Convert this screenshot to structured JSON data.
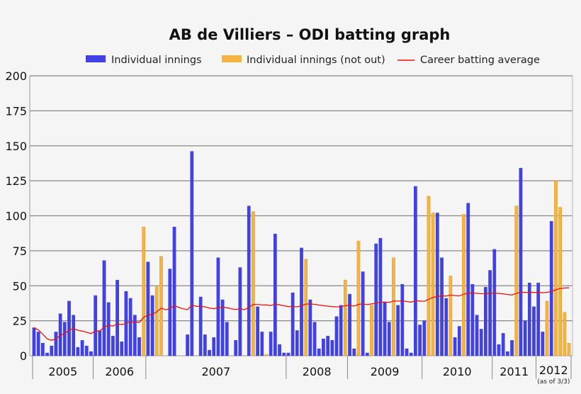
{
  "chart_data": {
    "type": "bar",
    "title": "AB de Villiers – ODI batting graph",
    "legend": {
      "placement": "top",
      "entries": [
        "Individual innings",
        "Individual innings (not out)",
        "Career batting average"
      ]
    },
    "colors": {
      "out": "#4141e8",
      "not_out": "#f5b342",
      "average": "#ee1111",
      "grid": "#888888"
    },
    "ylim": [
      0,
      200
    ],
    "yticks": [
      0,
      25,
      50,
      75,
      100,
      125,
      150,
      175,
      200
    ],
    "grid": true,
    "years": [
      {
        "label": "2005",
        "innings": 14
      },
      {
        "label": "2006",
        "innings": 12
      },
      {
        "label": "2007",
        "innings": 32
      },
      {
        "label": "2008",
        "innings": 14
      },
      {
        "label": "2009",
        "innings": 17
      },
      {
        "label": "2010",
        "innings": 16
      },
      {
        "label": "2011",
        "innings": 10
      },
      {
        "label": "2012",
        "innings": 8,
        "note": "(as of 3/3)"
      }
    ],
    "innings": [
      [
        20,
        0
      ],
      [
        17,
        0
      ],
      [
        9,
        0
      ],
      [
        2,
        0
      ],
      [
        7,
        0
      ],
      [
        17,
        0
      ],
      [
        30,
        0
      ],
      [
        24,
        0
      ],
      [
        39,
        0
      ],
      [
        29,
        0
      ],
      [
        6,
        0
      ],
      [
        11,
        0
      ],
      [
        7,
        0
      ],
      [
        3,
        0
      ],
      [
        43,
        0
      ],
      [
        18,
        0
      ],
      [
        68,
        0
      ],
      [
        38,
        0
      ],
      [
        14,
        0
      ],
      [
        54,
        0
      ],
      [
        10,
        0
      ],
      [
        46,
        0
      ],
      [
        41,
        0
      ],
      [
        29,
        0
      ],
      [
        13,
        0
      ],
      [
        92,
        1
      ],
      [
        67,
        0
      ],
      [
        43,
        0
      ],
      [
        50,
        1
      ],
      [
        71,
        1
      ],
      [
        0,
        0
      ],
      [
        62,
        0
      ],
      [
        92,
        0
      ],
      [
        0,
        0
      ],
      [
        0,
        0
      ],
      [
        15,
        0
      ],
      [
        146,
        0
      ],
      [
        0,
        0
      ],
      [
        42,
        0
      ],
      [
        15,
        0
      ],
      [
        4,
        0
      ],
      [
        13,
        0
      ],
      [
        70,
        0
      ],
      [
        40,
        0
      ],
      [
        24,
        0
      ],
      [
        0,
        0
      ],
      [
        11,
        0
      ],
      [
        63,
        0
      ],
      [
        0,
        0
      ],
      [
        107,
        0
      ],
      [
        103,
        1
      ],
      [
        35,
        0
      ],
      [
        17,
        0
      ],
      [
        1,
        1
      ],
      [
        17,
        0
      ],
      [
        87,
        0
      ],
      [
        8,
        0
      ],
      [
        2,
        0
      ],
      [
        2,
        0
      ],
      [
        45,
        0
      ],
      [
        18,
        0
      ],
      [
        77,
        0
      ],
      [
        69,
        1
      ],
      [
        40,
        0
      ],
      [
        24,
        0
      ],
      [
        5,
        0
      ],
      [
        12,
        0
      ],
      [
        14,
        0
      ],
      [
        11,
        0
      ],
      [
        28,
        0
      ],
      [
        36,
        0
      ],
      [
        54,
        1
      ],
      [
        44,
        0
      ],
      [
        5,
        0
      ],
      [
        82,
        1
      ],
      [
        60,
        0
      ],
      [
        2,
        0
      ],
      [
        36,
        1
      ],
      [
        80,
        0
      ],
      [
        84,
        0
      ],
      [
        38,
        0
      ],
      [
        24,
        0
      ],
      [
        70,
        1
      ],
      [
        36,
        0
      ],
      [
        51,
        0
      ],
      [
        5,
        0
      ],
      [
        2,
        0
      ],
      [
        121,
        0
      ],
      [
        22,
        0
      ],
      [
        25,
        0
      ],
      [
        114,
        1
      ],
      [
        102,
        1
      ],
      [
        102,
        0
      ],
      [
        70,
        0
      ],
      [
        41,
        0
      ],
      [
        57,
        1
      ],
      [
        13,
        0
      ],
      [
        21,
        0
      ],
      [
        101,
        1
      ],
      [
        109,
        0
      ],
      [
        51,
        0
      ],
      [
        29,
        0
      ],
      [
        19,
        0
      ],
      [
        49,
        0
      ],
      [
        61,
        0
      ],
      [
        76,
        0
      ],
      [
        8,
        0
      ],
      [
        16,
        0
      ],
      [
        3,
        0
      ],
      [
        11,
        0
      ],
      [
        107,
        1
      ],
      [
        134,
        0
      ],
      [
        25,
        0
      ],
      [
        52,
        0
      ],
      [
        35,
        0
      ],
      [
        52,
        0
      ],
      [
        17,
        0
      ],
      [
        39,
        1
      ],
      [
        96,
        0
      ],
      [
        125,
        1
      ],
      [
        106,
        1
      ],
      [
        31,
        1
      ],
      [
        9,
        1
      ]
    ]
  }
}
